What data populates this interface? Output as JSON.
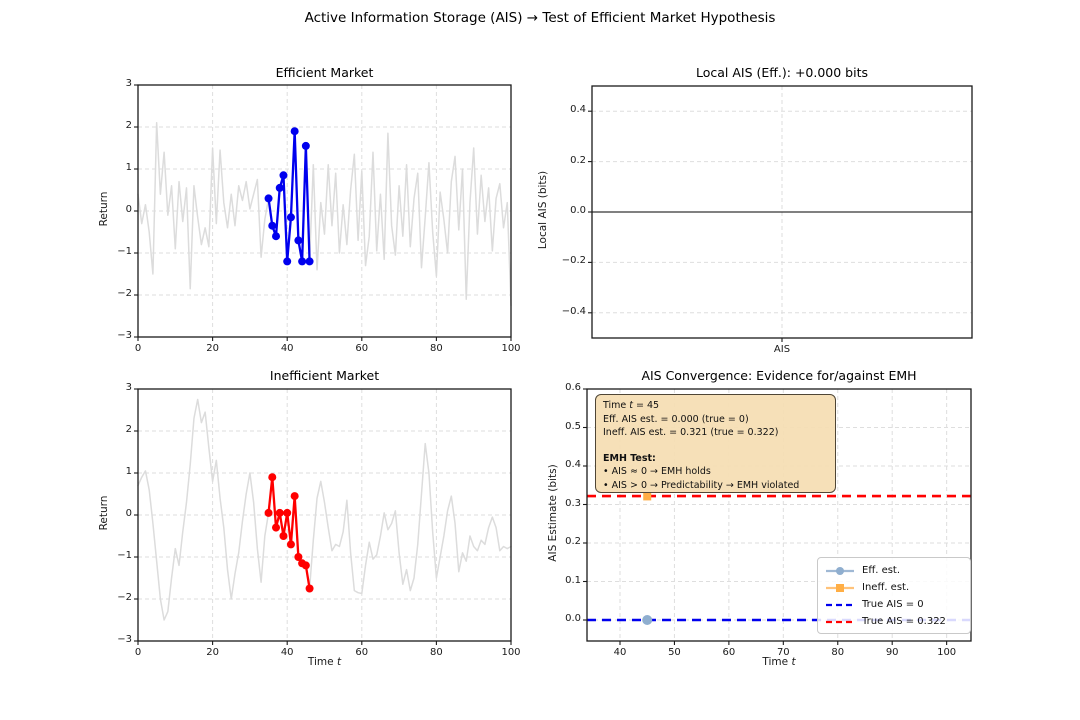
{
  "figure": {
    "title": "Active Information Storage (AIS) → Test of Efficient Market Hypothesis"
  },
  "colors": {
    "gray_series": "#DCDCDC",
    "efficient_highlight": "#0000EE",
    "inefficient_highlight": "#FF0000",
    "true_ais_zero_line": "#0000EE",
    "true_ais_line": "#FF0000",
    "eff_marker": "#8FAECF",
    "ineff_marker": "#FFAE45",
    "zero_line": "#000000",
    "grid": "#DEDEDE",
    "spine": "#1A1A1A",
    "tooltip_bg": "#F5DEB3",
    "tooltip_border": "#4F4636"
  },
  "panels": {
    "efficient": {
      "title": "Efficient Market",
      "ylabel": "Return",
      "xticks": [
        "0",
        "20",
        "40",
        "60",
        "80",
        "100"
      ],
      "yticks": [
        "-3",
        "-2",
        "-1",
        "0",
        "1",
        "2",
        "3"
      ]
    },
    "local_ais": {
      "title": "Local AIS (Eff.): +0.000 bits",
      "ylabel": "Local AIS (bits)",
      "xticks": [
        "AIS"
      ],
      "yticks": [
        "-0.4",
        "-0.2",
        "0.0",
        "0.2",
        "0.4"
      ]
    },
    "inefficient": {
      "title": "Inefficient Market",
      "xlabel_prefix": "Time ",
      "xlabel_var": "t",
      "ylabel": "Return",
      "xticks": [
        "0",
        "20",
        "40",
        "60",
        "80",
        "100"
      ],
      "yticks": [
        "-3",
        "-2",
        "-1",
        "0",
        "1",
        "2",
        "3"
      ]
    },
    "convergence": {
      "title": "AIS Convergence: Evidence for/against EMH",
      "xlabel_prefix": "Time ",
      "xlabel_var": "t",
      "ylabel": "AIS Estimate (bits)",
      "xticks": [
        "40",
        "50",
        "60",
        "70",
        "80",
        "90",
        "100"
      ],
      "yticks": [
        "0.0",
        "0.1",
        "0.2",
        "0.3",
        "0.4",
        "0.5",
        "0.6"
      ]
    }
  },
  "tooltip": {
    "time_prefix": "Time ",
    "time_var": "t",
    "time_suffix": " = 45",
    "eff_line": "Eff. AIS est. = 0.000 (true = 0)",
    "ineff_line": "Ineff. AIS est. = 0.321 (true = 0.322)",
    "heading": "EMH Test:",
    "bullet1": "• AIS ≈ 0 → EMH holds",
    "bullet2": "• AIS > 0 → Predictability → EMH violated"
  },
  "legend": {
    "items": [
      {
        "label": "Eff. est.",
        "color": "#8FAECF",
        "line_color": "#9FB8D4",
        "style": "solid",
        "marker": "circle"
      },
      {
        "label": "Ineff. est.",
        "color": "#FFAE45",
        "line_color": "#FFC27A",
        "style": "solid",
        "marker": "square"
      },
      {
        "label": "True AIS = 0",
        "color": "#0000EE",
        "line_color": "#0000EE",
        "style": "dashed",
        "marker": "none"
      },
      {
        "label": "True AIS = 0.322",
        "color": "#FF0000",
        "line_color": "#FF0000",
        "style": "dashed",
        "marker": "none"
      }
    ]
  },
  "chart_data": [
    {
      "type": "line",
      "title": "Efficient Market",
      "xlabel": "",
      "ylabel": "Return",
      "xlim": [
        0,
        100
      ],
      "ylim": [
        -3,
        3
      ],
      "grid": true,
      "series": [
        {
          "name": "full-return-series",
          "color": "#DCDCDC",
          "x_start": 0,
          "values": [
            0.4,
            -0.3,
            0.15,
            -0.5,
            -1.5,
            2.1,
            0.4,
            1.4,
            -0.1,
            0.6,
            -0.9,
            0.7,
            -0.25,
            0.55,
            -1.85,
            0.6,
            -0.15,
            -0.8,
            -0.4,
            -0.85,
            1.5,
            -0.3,
            1.45,
            0.2,
            -0.4,
            0.4,
            -0.35,
            0.6,
            0.25,
            0.7,
            0.05,
            0.4,
            0.75,
            -1.1,
            -0.2,
            0.3,
            -0.35,
            -0.6,
            0.55,
            0.85,
            -1.2,
            -0.15,
            1.9,
            -0.7,
            -1.2,
            1.55,
            -1.2,
            1.1,
            -1.4,
            0.2,
            -0.55,
            1.1,
            -0.35,
            0.9,
            -1.0,
            0.15,
            -0.8,
            0.5,
            1.35,
            -0.7,
            0.95,
            -1.3,
            -0.6,
            1.4,
            -0.95,
            0.4,
            -1.15,
            1.85,
            -0.35,
            -1.05,
            0.6,
            -0.6,
            1.1,
            -0.85,
            0.3,
            0.9,
            -1.35,
            -0.15,
            1.15,
            -0.5,
            -1.55,
            0.45,
            -0.2,
            -1.0,
            0.7,
            1.3,
            -0.45,
            1.0,
            -2.1,
            0.2,
            1.5,
            -0.55,
            0.85,
            -0.25,
            0.55,
            -0.95,
            0.3,
            0.65,
            -0.4,
            0.2,
            -2.25
          ]
        },
        {
          "name": "recent-window-highlight",
          "color": "#0000EE",
          "marker": "circle",
          "x_start": 35,
          "values": [
            0.3,
            -0.35,
            -0.6,
            0.55,
            0.85,
            -1.2,
            -0.15,
            1.9,
            -0.7,
            -1.2,
            1.55,
            -1.2
          ]
        }
      ]
    },
    {
      "type": "line",
      "title": "Local AIS (Eff.): +0.000 bits",
      "xlabel": "",
      "ylabel": "Local AIS (bits)",
      "categories": [
        "AIS"
      ],
      "ylim": [
        -0.5,
        0.5
      ],
      "grid": true,
      "hline": 0.0,
      "series": []
    },
    {
      "type": "line",
      "title": "Inefficient Market",
      "xlabel": "Time t",
      "ylabel": "Return",
      "xlim": [
        0,
        100
      ],
      "ylim": [
        -3,
        3
      ],
      "grid": true,
      "series": [
        {
          "name": "full-return-series",
          "color": "#DCDCDC",
          "x_start": 0,
          "values": [
            0.7,
            0.9,
            1.05,
            0.6,
            -0.2,
            -1.1,
            -2.0,
            -2.5,
            -2.3,
            -1.5,
            -0.8,
            -1.2,
            -0.4,
            0.3,
            1.2,
            2.3,
            2.75,
            2.2,
            2.45,
            1.6,
            0.8,
            1.3,
            0.4,
            -0.3,
            -1.3,
            -2.0,
            -1.4,
            -0.9,
            -0.15,
            0.5,
            1.0,
            0.3,
            -0.8,
            -1.6,
            -0.5,
            0.05,
            0.9,
            -0.3,
            0.05,
            -0.5,
            0.05,
            -0.7,
            0.45,
            -1.0,
            -1.15,
            -1.2,
            -1.75,
            -0.6,
            0.4,
            0.8,
            0.3,
            -0.3,
            -0.85,
            -0.7,
            -0.75,
            -0.4,
            0.35,
            -0.9,
            -1.8,
            -1.85,
            -1.87,
            -1.2,
            -0.65,
            -1.05,
            -0.95,
            -0.5,
            0.05,
            -0.35,
            -0.2,
            0.1,
            -0.9,
            -1.65,
            -1.3,
            -1.8,
            -1.5,
            -0.7,
            0.5,
            1.7,
            1.0,
            -0.4,
            -1.5,
            -1.0,
            -0.5,
            0.1,
            0.45,
            -0.2,
            -1.35,
            -0.9,
            -1.1,
            -0.5,
            -0.75,
            -0.85,
            -0.6,
            -0.7,
            -0.3,
            -0.05,
            -0.3,
            -0.85,
            -0.75,
            -0.8,
            -0.75
          ]
        },
        {
          "name": "recent-window-highlight",
          "color": "#FF0000",
          "marker": "circle",
          "x_start": 35,
          "values": [
            0.05,
            0.9,
            -0.3,
            0.05,
            -0.5,
            0.05,
            -0.7,
            0.45,
            -1.0,
            -1.15,
            -1.2,
            -1.75
          ]
        }
      ]
    },
    {
      "type": "scatter",
      "title": "AIS Convergence: Evidence for/against EMH",
      "xlabel": "Time t",
      "ylabel": "AIS Estimate (bits)",
      "xlim": [
        34,
        104.6
      ],
      "ylim": [
        -0.05,
        0.6
      ],
      "grid": true,
      "legend_position": "lower right",
      "points": [
        {
          "name": "Eff. est.",
          "x": 45,
          "y": 0.0,
          "marker": "circle",
          "color": "#8FAECF"
        },
        {
          "name": "Ineff. est.",
          "x": 45,
          "y": 0.321,
          "marker": "square",
          "color": "#FFAE45"
        }
      ],
      "hlines": [
        {
          "label": "True AIS = 0",
          "y": 0.0,
          "color": "#0000EE",
          "style": "dashed"
        },
        {
          "label": "True AIS = 0.322",
          "y": 0.322,
          "color": "#FF0000",
          "style": "dashed"
        }
      ]
    }
  ]
}
